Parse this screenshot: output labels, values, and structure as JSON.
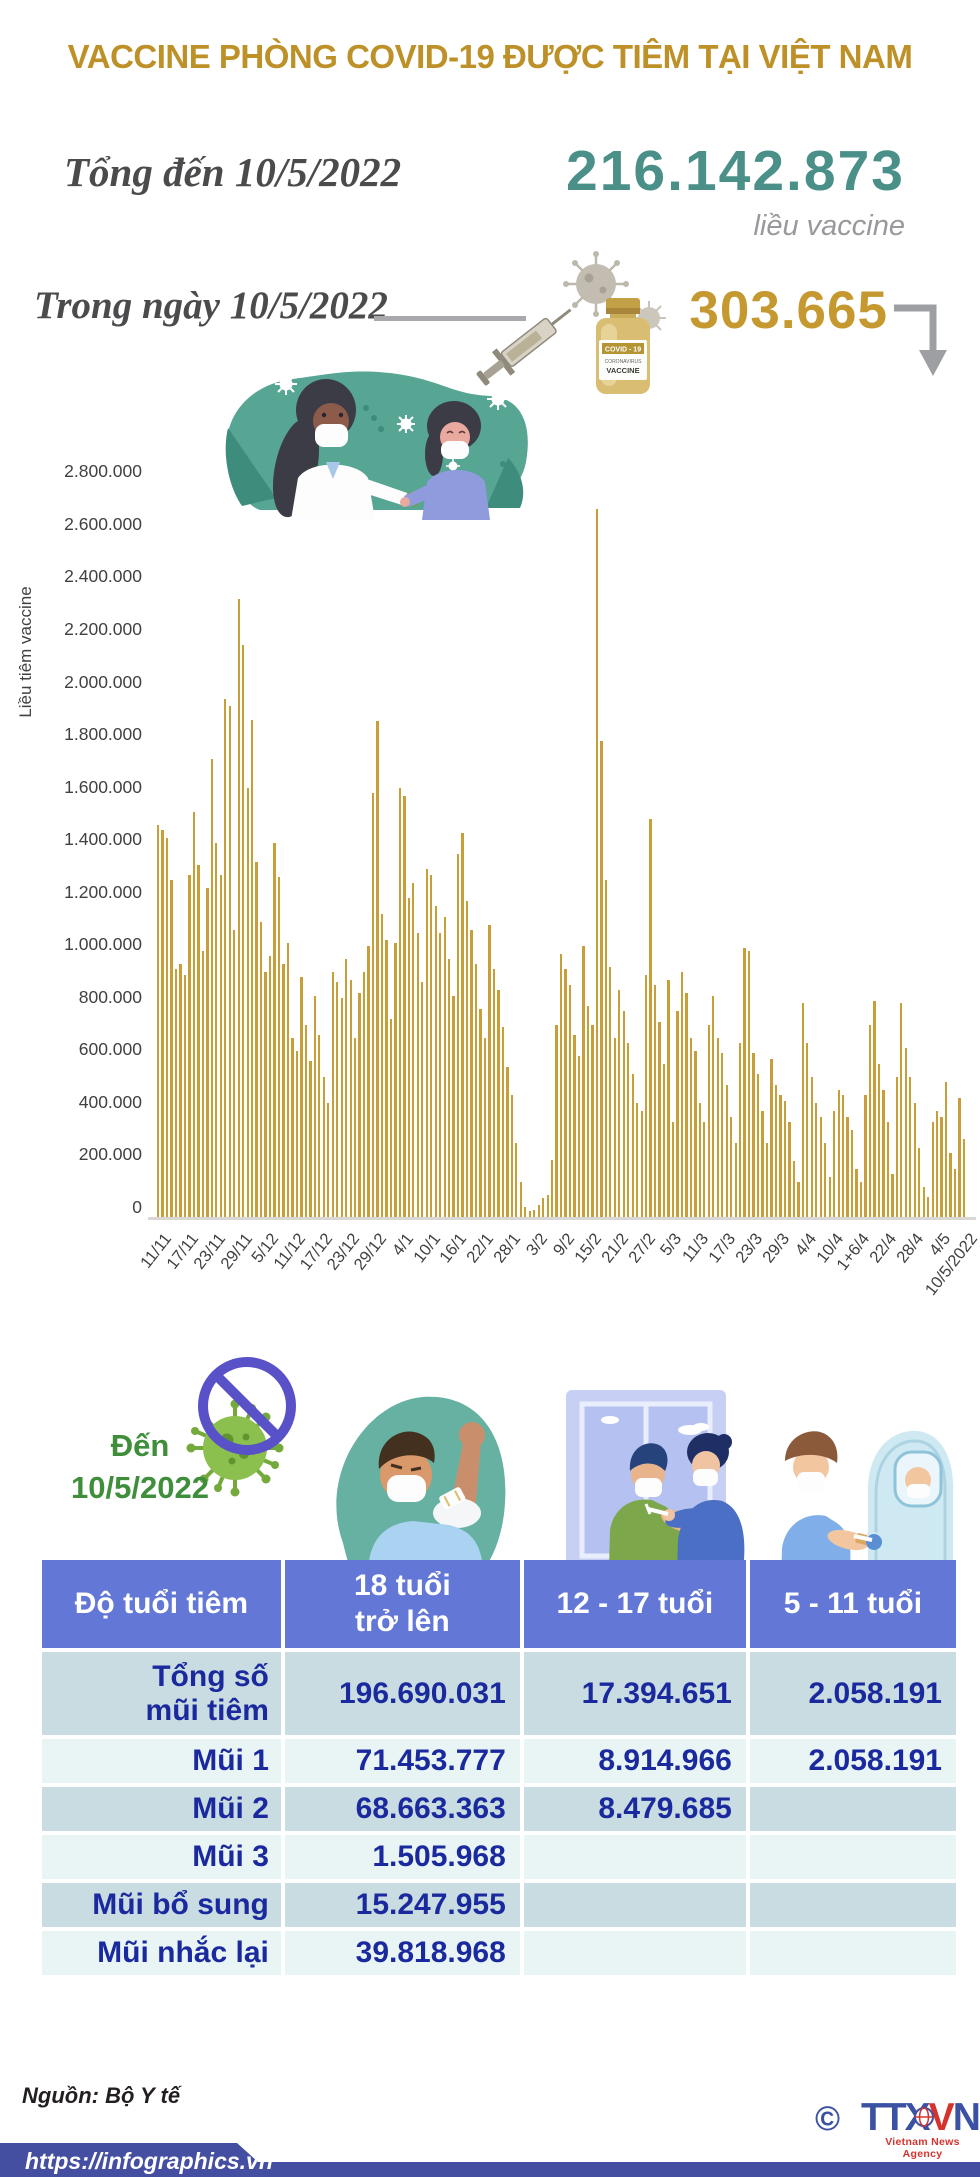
{
  "title": "VACCINE PHÒNG COVID-19 ĐƯỢC TIÊM TẠI VIỆT NAM",
  "stats": {
    "total_label": "Tổng đến 10/5/2022",
    "total_value": "216.142.873",
    "total_unit": "liều vaccine",
    "daily_label": "Trong ngày 10/5/2022",
    "daily_value": "303.665"
  },
  "vial_icon": {
    "line1": "COVID - 19",
    "line2": "CORONAVIRUS",
    "line3": "VACCINE"
  },
  "chart_data": {
    "type": "bar",
    "title": "",
    "xlabel": "",
    "ylabel": "Liều tiêm vaccine",
    "ylim": [
      0,
      2800000
    ],
    "grid": false,
    "bar_color": "#C79E37",
    "date_range": "11/11/2021 - 10/5/2022, one bar per day",
    "y_tick_labels": [
      "0",
      "200.000",
      "400.000",
      "600.000",
      "800.000",
      "1.000.000",
      "1.200.000",
      "1.400.000",
      "1.600.000",
      "1.800.000",
      "2.000.000",
      "2.200.000",
      "2.400.000",
      "2.600.000",
      "2.800.000"
    ],
    "x_tick_interval": 6,
    "x_tick_labels": [
      "11/11",
      "17/11",
      "23/11",
      "29/11",
      "5/12",
      "11/12",
      "17/12",
      "23/12",
      "29/12",
      "4/1",
      "10/1",
      "16/1",
      "22/1",
      "28/1",
      "3/2",
      "9/2",
      "15/2",
      "21/2",
      "27/2",
      "5/3",
      "11/3",
      "17/3",
      "23/3",
      "29/3",
      "4/4",
      "10/4",
      "1+6/4",
      "22/4",
      "28/4",
      "4/5",
      "10/5/2022"
    ],
    "values_note": "daily doses, estimated from bar heights; last bar equals the shown daily figure 303.665",
    "values": [
      1500000,
      1480000,
      1450000,
      1290000,
      950000,
      970000,
      930000,
      1310000,
      1550000,
      1345000,
      1020000,
      1260000,
      1750000,
      1430000,
      1310000,
      1980000,
      1950000,
      1100000,
      2360000,
      2185000,
      1640000,
      1900000,
      1360000,
      1130000,
      940000,
      1000000,
      1430000,
      1300000,
      970000,
      1050000,
      690000,
      640000,
      920000,
      740000,
      600000,
      850000,
      700000,
      540000,
      440000,
      940000,
      900000,
      840000,
      990000,
      910000,
      690000,
      860000,
      940000,
      1040000,
      1620000,
      1895000,
      1160000,
      1060000,
      760000,
      1050000,
      1640000,
      1610000,
      1220000,
      1280000,
      1090000,
      900000,
      1330000,
      1310000,
      1190000,
      1090000,
      1150000,
      990000,
      850000,
      1390000,
      1470000,
      1210000,
      1100000,
      970000,
      800000,
      690000,
      1120000,
      950000,
      870000,
      730000,
      580000,
      470000,
      290000,
      140000,
      45000,
      30000,
      35000,
      55000,
      80000,
      90000,
      225000,
      740000,
      1010000,
      950000,
      890000,
      700000,
      620000,
      1040000,
      810000,
      740000,
      2700000,
      1820000,
      1290000,
      960000,
      690000,
      870000,
      790000,
      670000,
      550000,
      440000,
      410000,
      930000,
      1520000,
      890000,
      750000,
      590000,
      910000,
      370000,
      790000,
      940000,
      860000,
      690000,
      640000,
      440000,
      370000,
      740000,
      850000,
      690000,
      630000,
      510000,
      390000,
      290000,
      670000,
      1030000,
      1020000,
      630000,
      550000,
      410000,
      290000,
      610000,
      510000,
      470000,
      450000,
      370000,
      220000,
      140000,
      820000,
      670000,
      540000,
      440000,
      390000,
      290000,
      160000,
      410000,
      490000,
      470000,
      390000,
      340000,
      190000,
      140000,
      470000,
      740000,
      830000,
      590000,
      490000,
      370000,
      170000,
      540000,
      820000,
      650000,
      540000,
      440000,
      270000,
      120000,
      85000,
      370000,
      410000,
      390000,
      520000,
      250000,
      190000,
      460000,
      303665
    ]
  },
  "period_section": {
    "as_of_line1": "Đến",
    "as_of_line2": "10/5/2022"
  },
  "table": {
    "header": [
      "Độ tuổi tiêm",
      "18 tuổi trở lên",
      "12 - 17 tuổi",
      "5 - 11 tuổi"
    ],
    "header_col2_lines": [
      "18 tuổi",
      "trở lên"
    ],
    "rows": [
      {
        "label": "Tổng số mũi tiêm",
        "label_lines": [
          "Tổng số",
          "mũi tiêm"
        ],
        "values": [
          "196.690.031",
          "17.394.651",
          "2.058.191"
        ]
      },
      {
        "label": "Mũi 1",
        "values": [
          "71.453.777",
          "8.914.966",
          "2.058.191"
        ]
      },
      {
        "label": "Mũi 2",
        "values": [
          "68.663.363",
          "8.479.685",
          ""
        ]
      },
      {
        "label": "Mũi 3",
        "values": [
          "1.505.968",
          "",
          ""
        ]
      },
      {
        "label": "Mũi bổ sung",
        "values": [
          "15.247.955",
          "",
          ""
        ]
      },
      {
        "label": "Mũi nhắc lại",
        "values": [
          "39.818.968",
          "",
          ""
        ]
      }
    ]
  },
  "source": "Nguồn: Bộ Y tế",
  "footer": {
    "url": "https://infographics.vn",
    "copyright": "©",
    "agency_t1": "TTX",
    "agency_v": "V",
    "agency_n": "N",
    "agency_sub": "Vietnam News Agency"
  },
  "colors": {
    "title_gold": "#BD9127",
    "teal_number": "#4A9089",
    "gold_number": "#C5992F",
    "bar_gold": "#C79E37",
    "table_header_blue": "#6277D6",
    "row_dark": "#C9DCE1",
    "row_light": "#E9F4F5",
    "table_text_blue": "#1A2A9E",
    "green_text": "#3E8E3B",
    "footer_blue": "#444FA2",
    "logo_blue": "#3B51A3",
    "logo_red": "#D6332E"
  }
}
